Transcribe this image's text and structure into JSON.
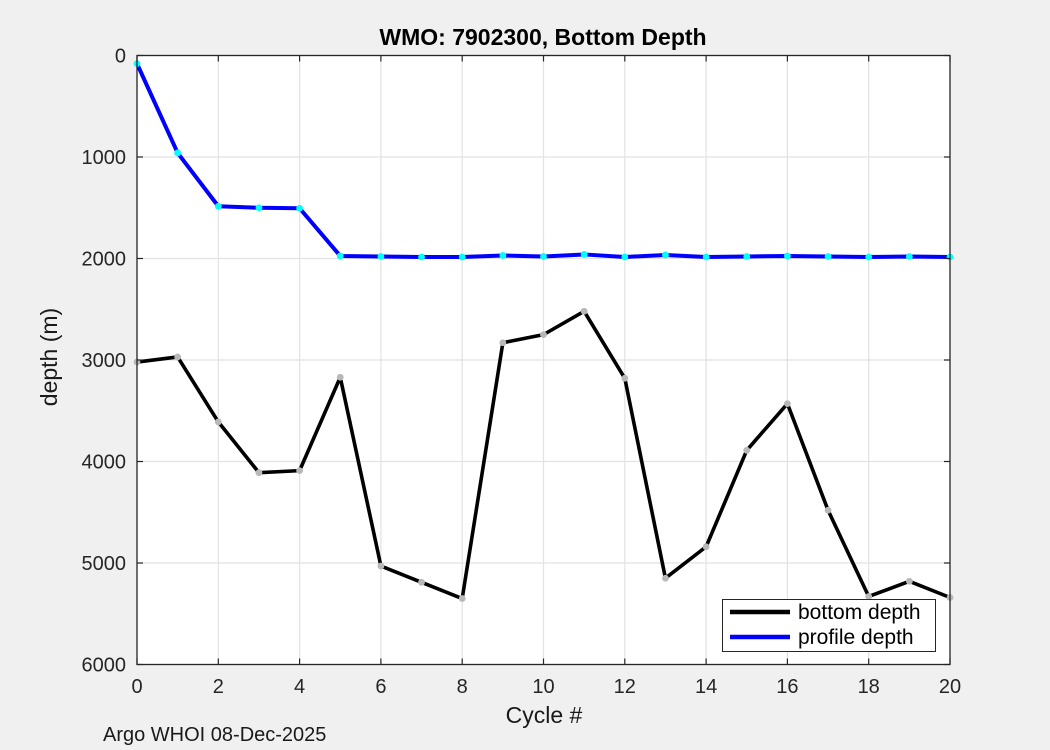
{
  "figure": {
    "title": "WMO: 7902300, Bottom Depth",
    "annotation": "Argo WHOI 08-Dec-2025"
  },
  "colors": {
    "figure_background": "#f0f0f0",
    "plot_background": "#ffffff",
    "grid": "#e2e2e2",
    "axes": "#262626",
    "bottom_depth_line": "#000000",
    "bottom_depth_marker": "#b8b8b8",
    "profile_depth_line": "#0000ff",
    "profile_depth_marker": "#00ffff"
  },
  "chart_data": {
    "type": "line",
    "title": "WMO: 7902300, Bottom Depth",
    "xlabel": "Cycle #",
    "ylabel": "depth (m)",
    "annotation": "Argo WHOI 08-Dec-2025",
    "x": [
      0,
      1,
      2,
      3,
      4,
      5,
      6,
      7,
      8,
      9,
      10,
      11,
      12,
      13,
      14,
      15,
      16,
      17,
      18,
      19,
      20
    ],
    "series": [
      {
        "name": "bottom depth",
        "color": "#000000",
        "marker_color": "#b8b8b8",
        "values": [
          3020,
          2970,
          3610,
          4110,
          4090,
          3170,
          5030,
          5190,
          5350,
          2830,
          2750,
          2520,
          3180,
          5150,
          4840,
          3890,
          3430,
          4480,
          5330,
          5180,
          5340
        ]
      },
      {
        "name": "profile depth",
        "color": "#0000ff",
        "marker_color": "#00ffff",
        "values": [
          80,
          960,
          1485,
          1500,
          1505,
          1975,
          1980,
          1985,
          1985,
          1970,
          1980,
          1960,
          1985,
          1965,
          1985,
          1980,
          1975,
          1980,
          1985,
          1980,
          1985
        ]
      }
    ],
    "xlim": [
      0,
      20
    ],
    "ylim": [
      0,
      6000
    ],
    "xticks": [
      0,
      2,
      4,
      6,
      8,
      10,
      12,
      14,
      16,
      18,
      20
    ],
    "yticks": [
      0,
      1000,
      2000,
      3000,
      4000,
      5000,
      6000
    ],
    "y_axis_direction": "reversed (depth increases downward)",
    "grid": true,
    "legend_position": "bottom-right inside axes"
  }
}
